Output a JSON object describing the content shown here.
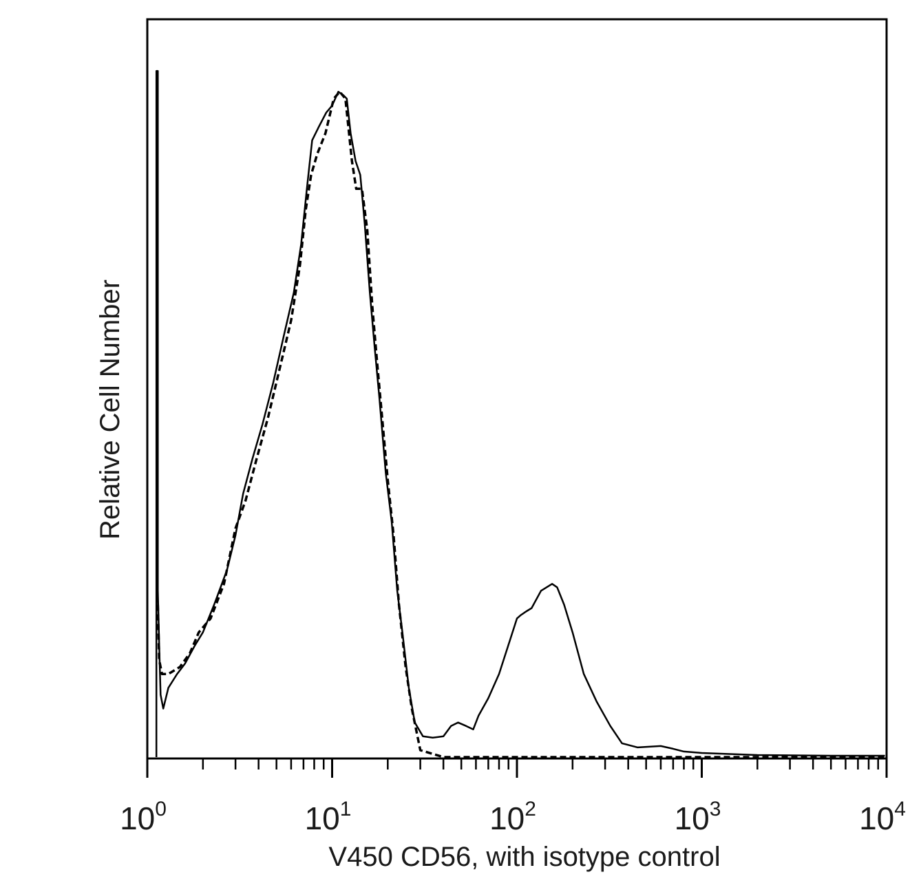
{
  "chart_data": {
    "type": "line",
    "title": "",
    "xlabel": "V450 CD56, with isotype control",
    "ylabel": "Relative Cell Number",
    "xscale": "log",
    "xlim": [
      1,
      10000
    ],
    "ylim": [
      0,
      1
    ],
    "grid": false,
    "legend": "none",
    "x_ticks": [
      {
        "base": "10",
        "exp": "0"
      },
      {
        "base": "10",
        "exp": "1"
      },
      {
        "base": "10",
        "exp": "2"
      },
      {
        "base": "10",
        "exp": "3"
      },
      {
        "base": "10",
        "exp": "4"
      }
    ],
    "x_tick_values": [
      1,
      10,
      100,
      1000,
      10000
    ],
    "series": [
      {
        "style": "solid",
        "color": "#000000",
        "points": [
          [
            1.12,
            0.0
          ],
          [
            1.12,
            0.99
          ],
          [
            1.14,
            0.99
          ],
          [
            1.14,
            0.24
          ],
          [
            1.16,
            0.16
          ],
          [
            1.18,
            0.09
          ],
          [
            1.22,
            0.07
          ],
          [
            1.3,
            0.1
          ],
          [
            1.45,
            0.12
          ],
          [
            1.6,
            0.135
          ],
          [
            1.8,
            0.16
          ],
          [
            2.0,
            0.18
          ],
          [
            2.3,
            0.22
          ],
          [
            2.7,
            0.27
          ],
          [
            3.0,
            0.32
          ],
          [
            3.3,
            0.38
          ],
          [
            3.7,
            0.43
          ],
          [
            4.2,
            0.48
          ],
          [
            4.8,
            0.54
          ],
          [
            5.5,
            0.61
          ],
          [
            6.2,
            0.67
          ],
          [
            6.8,
            0.74
          ],
          [
            7.3,
            0.82
          ],
          [
            7.8,
            0.89
          ],
          [
            8.5,
            0.91
          ],
          [
            9.3,
            0.93
          ],
          [
            10.0,
            0.94
          ],
          [
            10.8,
            0.96
          ],
          [
            11.5,
            0.955
          ],
          [
            12.0,
            0.95
          ],
          [
            12.6,
            0.9
          ],
          [
            13.4,
            0.86
          ],
          [
            14.2,
            0.84
          ],
          [
            15.0,
            0.77
          ],
          [
            16.0,
            0.67
          ],
          [
            17.0,
            0.59
          ],
          [
            18.0,
            0.52
          ],
          [
            19.5,
            0.41
          ],
          [
            21.0,
            0.34
          ],
          [
            22.5,
            0.24
          ],
          [
            24.0,
            0.18
          ],
          [
            26.0,
            0.1
          ],
          [
            28.0,
            0.05
          ],
          [
            31.0,
            0.03
          ],
          [
            35.0,
            0.028
          ],
          [
            40.0,
            0.03
          ],
          [
            44.0,
            0.045
          ],
          [
            48.0,
            0.05
          ],
          [
            53.0,
            0.045
          ],
          [
            58.0,
            0.04
          ],
          [
            62.0,
            0.06
          ],
          [
            70.0,
            0.085
          ],
          [
            80.0,
            0.12
          ],
          [
            92.0,
            0.17
          ],
          [
            100.0,
            0.2
          ],
          [
            105.0,
            0.205
          ],
          [
            112.0,
            0.21
          ],
          [
            120.0,
            0.215
          ],
          [
            135.0,
            0.24
          ],
          [
            155.0,
            0.25
          ],
          [
            165.0,
            0.245
          ],
          [
            180.0,
            0.22
          ],
          [
            200.0,
            0.18
          ],
          [
            230.0,
            0.12
          ],
          [
            270.0,
            0.08
          ],
          [
            320.0,
            0.045
          ],
          [
            370.0,
            0.02
          ],
          [
            450.0,
            0.014
          ],
          [
            600.0,
            0.016
          ],
          [
            700.0,
            0.012
          ],
          [
            800.0,
            0.008
          ],
          [
            1000.0,
            0.006
          ],
          [
            2000.0,
            0.003
          ],
          [
            5000.0,
            0.002
          ],
          [
            9800.0,
            0.002
          ]
        ]
      },
      {
        "style": "dashed",
        "color": "#000000",
        "points": [
          [
            1.14,
            0.22
          ],
          [
            1.16,
            0.14
          ],
          [
            1.2,
            0.12
          ],
          [
            1.3,
            0.12
          ],
          [
            1.5,
            0.13
          ],
          [
            1.7,
            0.15
          ],
          [
            1.9,
            0.18
          ],
          [
            2.2,
            0.2
          ],
          [
            2.6,
            0.25
          ],
          [
            3.0,
            0.33
          ],
          [
            3.4,
            0.37
          ],
          [
            3.9,
            0.43
          ],
          [
            4.5,
            0.49
          ],
          [
            5.2,
            0.56
          ],
          [
            6.0,
            0.63
          ],
          [
            6.7,
            0.71
          ],
          [
            7.2,
            0.79
          ],
          [
            7.7,
            0.84
          ],
          [
            8.3,
            0.87
          ],
          [
            9.2,
            0.9
          ],
          [
            10.2,
            0.95
          ],
          [
            11.0,
            0.96
          ],
          [
            11.8,
            0.95
          ],
          [
            12.8,
            0.86
          ],
          [
            13.5,
            0.82
          ],
          [
            14.5,
            0.82
          ],
          [
            15.5,
            0.76
          ],
          [
            16.5,
            0.65
          ],
          [
            17.5,
            0.57
          ],
          [
            18.5,
            0.5
          ],
          [
            20.0,
            0.4
          ],
          [
            21.5,
            0.32
          ],
          [
            23.0,
            0.22
          ],
          [
            25.0,
            0.13
          ],
          [
            27.0,
            0.07
          ],
          [
            30.0,
            0.01
          ],
          [
            40.0,
            0.0
          ],
          [
            100.0,
            0.0
          ],
          [
            1000.0,
            0.0
          ],
          [
            9800.0,
            0.0
          ]
        ]
      }
    ]
  }
}
